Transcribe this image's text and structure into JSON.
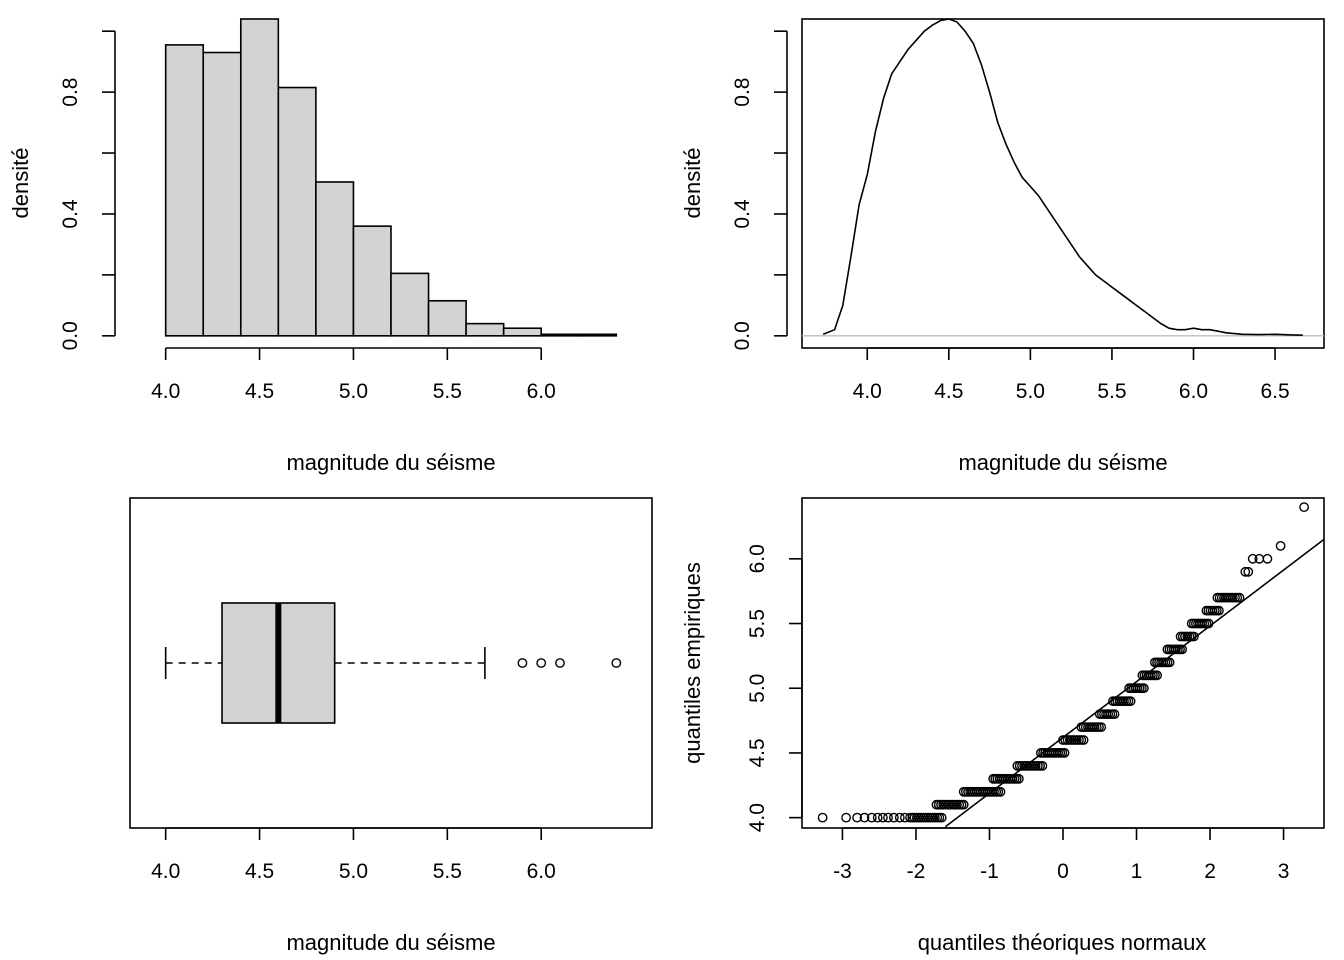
{
  "chart_data": [
    {
      "type": "bar",
      "subtype": "histogram",
      "xlabel": "magnitude du séisme",
      "ylabel": "densité",
      "xlim": [
        4.0,
        6.4
      ],
      "ylim": [
        0,
        1.0
      ],
      "xticks": [
        4.0,
        4.5,
        5.0,
        5.5,
        6.0
      ],
      "xtick_labels": [
        "4.0",
        "4.5",
        "5.0",
        "5.5",
        "6.0"
      ],
      "yticks": [
        0.0,
        0.2,
        0.4,
        0.6,
        0.8,
        1.0
      ],
      "ytick_labels": [
        "0.0",
        "",
        "0.4",
        "",
        "0.8",
        ""
      ],
      "bins": [
        [
          4.0,
          4.2
        ],
        [
          4.2,
          4.4
        ],
        [
          4.4,
          4.6
        ],
        [
          4.6,
          4.8
        ],
        [
          4.8,
          5.0
        ],
        [
          5.0,
          5.2
        ],
        [
          5.2,
          5.4
        ],
        [
          5.4,
          5.6
        ],
        [
          5.6,
          5.8
        ],
        [
          5.8,
          6.0
        ],
        [
          6.0,
          6.2
        ],
        [
          6.2,
          6.4
        ]
      ],
      "values": [
        0.955,
        0.93,
        1.04,
        0.815,
        0.505,
        0.36,
        0.205,
        0.115,
        0.04,
        0.025,
        0.005,
        0.005
      ],
      "fill": "#d3d3d3"
    },
    {
      "type": "line",
      "subtype": "density",
      "xlabel": "magnitude du séisme",
      "ylabel": "densité",
      "xlim": [
        3.6,
        6.8
      ],
      "ylim": [
        -0.04,
        1.04
      ],
      "xticks": [
        4.0,
        4.5,
        5.0,
        5.5,
        6.0,
        6.5
      ],
      "xtick_labels": [
        "4.0",
        "4.5",
        "5.0",
        "5.5",
        "6.0",
        "6.5"
      ],
      "yticks": [
        0.0,
        0.2,
        0.4,
        0.6,
        0.8,
        1.0
      ],
      "ytick_labels": [
        "0.0",
        "",
        "0.4",
        "",
        "0.8",
        ""
      ],
      "baseline_color": "#bebebe",
      "x": [
        3.73,
        3.8,
        3.85,
        3.9,
        3.95,
        4.0,
        4.05,
        4.1,
        4.15,
        4.2,
        4.25,
        4.3,
        4.35,
        4.4,
        4.45,
        4.5,
        4.55,
        4.6,
        4.65,
        4.7,
        4.75,
        4.8,
        4.85,
        4.9,
        4.95,
        5.0,
        5.05,
        5.1,
        5.15,
        5.2,
        5.25,
        5.3,
        5.35,
        5.4,
        5.45,
        5.5,
        5.55,
        5.6,
        5.65,
        5.7,
        5.75,
        5.8,
        5.85,
        5.9,
        5.95,
        6.0,
        6.05,
        6.1,
        6.15,
        6.2,
        6.3,
        6.4,
        6.5,
        6.6,
        6.67
      ],
      "y": [
        0.005,
        0.02,
        0.1,
        0.26,
        0.43,
        0.53,
        0.67,
        0.78,
        0.86,
        0.9,
        0.94,
        0.97,
        1.0,
        1.02,
        1.035,
        1.04,
        1.03,
        1.0,
        0.96,
        0.89,
        0.8,
        0.7,
        0.63,
        0.57,
        0.52,
        0.49,
        0.46,
        0.42,
        0.38,
        0.34,
        0.3,
        0.26,
        0.23,
        0.2,
        0.18,
        0.16,
        0.14,
        0.12,
        0.1,
        0.08,
        0.06,
        0.04,
        0.025,
        0.02,
        0.02,
        0.025,
        0.02,
        0.02,
        0.015,
        0.01,
        0.005,
        0.004,
        0.005,
        0.003,
        0.002
      ]
    },
    {
      "type": "boxplot",
      "orientation": "horizontal",
      "xlabel": "magnitude du séisme",
      "xlim": [
        3.9,
        6.5
      ],
      "xticks": [
        4.0,
        4.5,
        5.0,
        5.5,
        6.0
      ],
      "xtick_labels": [
        "4.0",
        "4.5",
        "5.0",
        "5.5",
        "6.0"
      ],
      "whisker_low": 4.0,
      "q1": 4.3,
      "median": 4.6,
      "q3": 4.9,
      "whisker_high": 5.7,
      "outliers": [
        5.9,
        6.0,
        6.1,
        6.4
      ],
      "fill": "#d3d3d3"
    },
    {
      "type": "scatter",
      "subtype": "qq-plot",
      "xlabel": "quantiles théoriques normaux",
      "ylabel": "quantiles empiriques",
      "xlim": [
        -3.55,
        3.55
      ],
      "ylim": [
        3.92,
        6.47
      ],
      "xticks": [
        -3,
        -2,
        -1,
        0,
        1,
        2,
        3
      ],
      "xtick_labels": [
        "-3",
        "-2",
        "-1",
        "0",
        "1",
        "2",
        "3"
      ],
      "yticks": [
        4.0,
        4.5,
        5.0,
        5.5,
        6.0
      ],
      "ytick_labels": [
        "4.0",
        "4.5",
        "5.0",
        "5.5",
        "6.0"
      ],
      "reference_line": {
        "x1": -1.6,
        "y1": 3.93,
        "x2": 3.55,
        "y2": 6.15
      },
      "steps": [
        {
          "y": 4.0,
          "x_from": -2.05,
          "x_to": -1.65
        },
        {
          "y": 4.1,
          "x_from": -1.72,
          "x_to": -1.35
        },
        {
          "y": 4.2,
          "x_from": -1.35,
          "x_to": -0.85
        },
        {
          "y": 4.3,
          "x_from": -0.95,
          "x_to": -0.6
        },
        {
          "y": 4.4,
          "x_from": -0.62,
          "x_to": -0.28
        },
        {
          "y": 4.5,
          "x_from": -0.3,
          "x_to": 0.02
        },
        {
          "y": 4.6,
          "x_from": 0.0,
          "x_to": 0.28
        },
        {
          "y": 4.7,
          "x_from": 0.25,
          "x_to": 0.52
        },
        {
          "y": 4.8,
          "x_from": 0.5,
          "x_to": 0.7
        },
        {
          "y": 4.9,
          "x_from": 0.68,
          "x_to": 0.92
        },
        {
          "y": 5.0,
          "x_from": 0.9,
          "x_to": 1.1
        },
        {
          "y": 5.1,
          "x_from": 1.08,
          "x_to": 1.28
        },
        {
          "y": 5.2,
          "x_from": 1.25,
          "x_to": 1.45
        },
        {
          "y": 5.3,
          "x_from": 1.42,
          "x_to": 1.62
        },
        {
          "y": 5.4,
          "x_from": 1.6,
          "x_to": 1.78
        },
        {
          "y": 5.5,
          "x_from": 1.75,
          "x_to": 1.98
        },
        {
          "y": 5.6,
          "x_from": 1.95,
          "x_to": 2.12
        },
        {
          "y": 5.7,
          "x_from": 2.1,
          "x_to": 2.4
        }
      ],
      "points": [
        [
          -3.27,
          4.0
        ],
        [
          -2.95,
          4.0
        ],
        [
          -2.8,
          4.0
        ],
        [
          -2.7,
          4.0
        ],
        [
          -2.6,
          4.0
        ],
        [
          -2.52,
          4.0
        ],
        [
          -2.45,
          4.0
        ],
        [
          -2.38,
          4.0
        ],
        [
          -2.3,
          4.0
        ],
        [
          -2.22,
          4.0
        ],
        [
          -2.15,
          4.0
        ],
        [
          -2.08,
          4.0
        ],
        [
          2.48,
          5.9
        ],
        [
          2.52,
          5.9
        ],
        [
          2.58,
          6.0
        ],
        [
          2.67,
          6.0
        ],
        [
          2.78,
          6.0
        ],
        [
          2.96,
          6.1
        ],
        [
          3.28,
          6.4
        ]
      ]
    }
  ]
}
